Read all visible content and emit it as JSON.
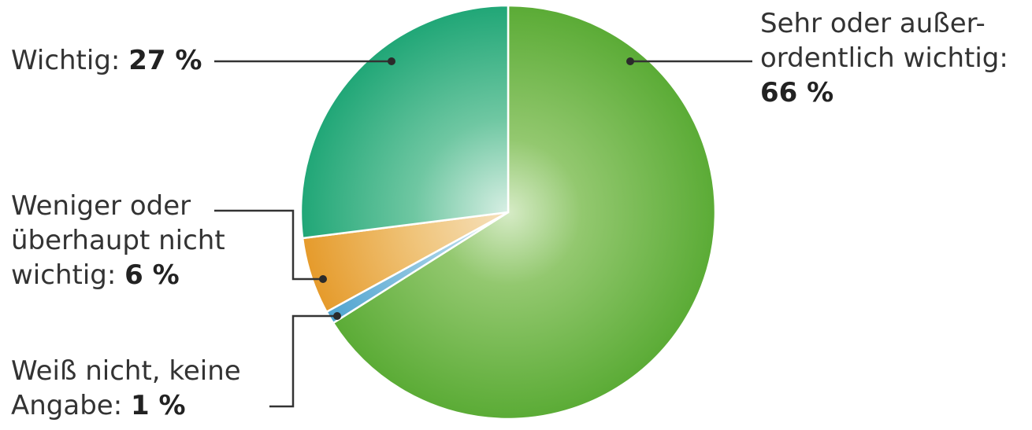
{
  "chart_data": {
    "type": "pie",
    "title": "",
    "slices": [
      {
        "name": "Sehr oder außerordentlich wichtig",
        "value": 66,
        "color": "#5fae3a",
        "label_lines": [
          "Sehr oder außer-",
          "ordentlich wichtig:"
        ],
        "value_label": "66 %"
      },
      {
        "name": "Weiß nicht, keine Angabe",
        "value": 1,
        "color": "#5aa9d2",
        "label_lines": [
          "Weiß nicht, keine",
          "Angabe:"
        ],
        "value_label": "1 %"
      },
      {
        "name": "Weniger oder überhaupt nicht wichtig",
        "value": 6,
        "color": "#e6a035",
        "label_lines": [
          "Weniger oder",
          "überhaupt nicht",
          "wichtig:"
        ],
        "value_label": "6 %"
      },
      {
        "name": "Wichtig",
        "value": 27,
        "color": "#22aa78",
        "label_lines": [
          "Wichtig:"
        ],
        "value_label": "27 %"
      }
    ]
  }
}
